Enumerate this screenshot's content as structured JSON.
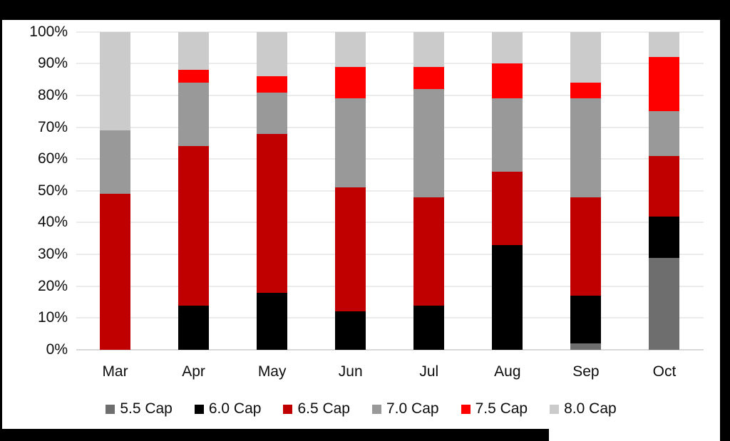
{
  "frame": {
    "background_color": "#000000",
    "chart_background_color": "#ffffff",
    "gridline_color": "#ebebeb",
    "axis_line_color": "#d9d9d9",
    "text_color": "#0d0d0d"
  },
  "chart_data": {
    "type": "bar",
    "subtype": "stacked-100-percent-column",
    "title": "",
    "xlabel": "",
    "ylabel": "",
    "ylim": [
      0,
      100
    ],
    "grid": true,
    "legend_position": "bottom",
    "categories": [
      "Mar",
      "Apr",
      "May",
      "Jun",
      "Jul",
      "Aug",
      "Sep",
      "Oct"
    ],
    "y_ticks": [
      "0%",
      "10%",
      "20%",
      "30%",
      "40%",
      "50%",
      "60%",
      "70%",
      "80%",
      "90%",
      "100%"
    ],
    "series": [
      {
        "name": "5.5 Cap",
        "color": "#6e6e6e",
        "values": [
          0,
          0,
          0,
          0,
          0,
          0,
          2,
          29
        ]
      },
      {
        "name": "6.0 Cap",
        "color": "#000000",
        "values": [
          0,
          14,
          18,
          12,
          14,
          33,
          15,
          13
        ]
      },
      {
        "name": "6.5 Cap",
        "color": "#c00000",
        "values": [
          49,
          50,
          50,
          39,
          34,
          23,
          31,
          19
        ]
      },
      {
        "name": "7.0 Cap",
        "color": "#999999",
        "values": [
          20,
          20,
          13,
          28,
          34,
          23,
          31,
          14
        ]
      },
      {
        "name": "7.5 Cap",
        "color": "#ff0000",
        "values": [
          0,
          4,
          5,
          10,
          7,
          11,
          5,
          17
        ]
      },
      {
        "name": "8.0 Cap",
        "color": "#cbcbcb",
        "values": [
          31,
          12,
          14,
          11,
          11,
          10,
          16,
          8
        ]
      }
    ]
  }
}
